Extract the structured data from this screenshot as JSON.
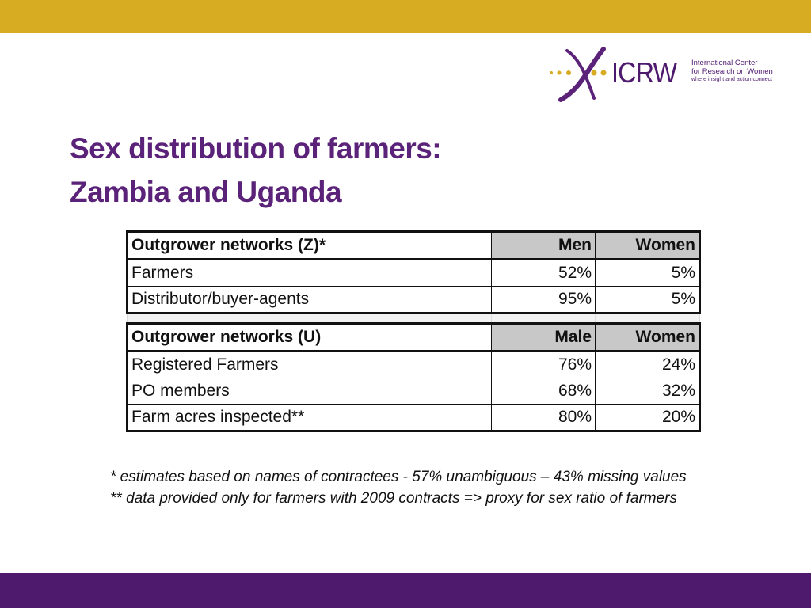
{
  "logo": {
    "wordmark": "ICRW",
    "tagline_line1": "International Center",
    "tagline_line2": "for Research on Women",
    "motto": "where insight and action connect"
  },
  "title": {
    "line1": "Sex distribution of farmers:",
    "line2": "Zambia and Uganda"
  },
  "table": {
    "zambia": {
      "header": [
        "Outgrower networks (Z)*",
        "Men",
        "Women"
      ],
      "rows": [
        [
          "Farmers",
          "52%",
          "5%"
        ],
        [
          "Distributor/buyer-agents",
          "95%",
          "5%"
        ]
      ]
    },
    "uganda": {
      "header": [
        "Outgrower networks (U)",
        "Male",
        "Women"
      ],
      "rows": [
        [
          "Registered Farmers",
          "76%",
          "24%"
        ],
        [
          "PO members",
          "68%",
          "32%"
        ],
        [
          "Farm acres inspected**",
          "80%",
          "20%"
        ]
      ]
    }
  },
  "footnote": "* estimates based on names of contractees - 57% unambiguous – 43% missing values ** data provided only for farmers with 2009 contracts => proxy for sex ratio of farmers",
  "colors": {
    "top_band": "#d8ac22",
    "bottom_band": "#4e1a6e",
    "title": "#5a2278",
    "header_shade": "#c8c8c8"
  }
}
